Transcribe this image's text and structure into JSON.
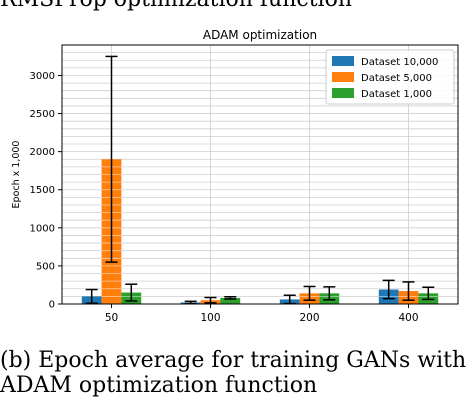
{
  "previous_caption": "RMSProp optimization function",
  "caption": {
    "line1": "(b) Epoch average for training GANs with",
    "line2": "ADAM optimization function"
  },
  "chart_data": {
    "type": "bar",
    "title": "ADAM optimization",
    "xlabel": "",
    "ylabel": "Epoch x 1,000",
    "categories": [
      "50",
      "100",
      "200",
      "400"
    ],
    "ylim": [
      0,
      3400
    ],
    "yticks": [
      0,
      500,
      1000,
      1500,
      2000,
      2500,
      3000
    ],
    "grid": true,
    "legend_position": "top-right",
    "series": [
      {
        "name": "Dataset 10,000",
        "color": "#1f77b4",
        "values": [
          100,
          20,
          60,
          190
        ],
        "errors": [
          90,
          15,
          55,
          120
        ]
      },
      {
        "name": "Dataset 5,000",
        "color": "#ff7f0e",
        "values": [
          1900,
          50,
          140,
          170
        ],
        "errors": [
          1350,
          35,
          90,
          120
        ]
      },
      {
        "name": "Dataset 1,000",
        "color": "#2ca02c",
        "values": [
          150,
          80,
          140,
          140
        ],
        "errors": [
          110,
          15,
          85,
          80
        ]
      }
    ]
  }
}
